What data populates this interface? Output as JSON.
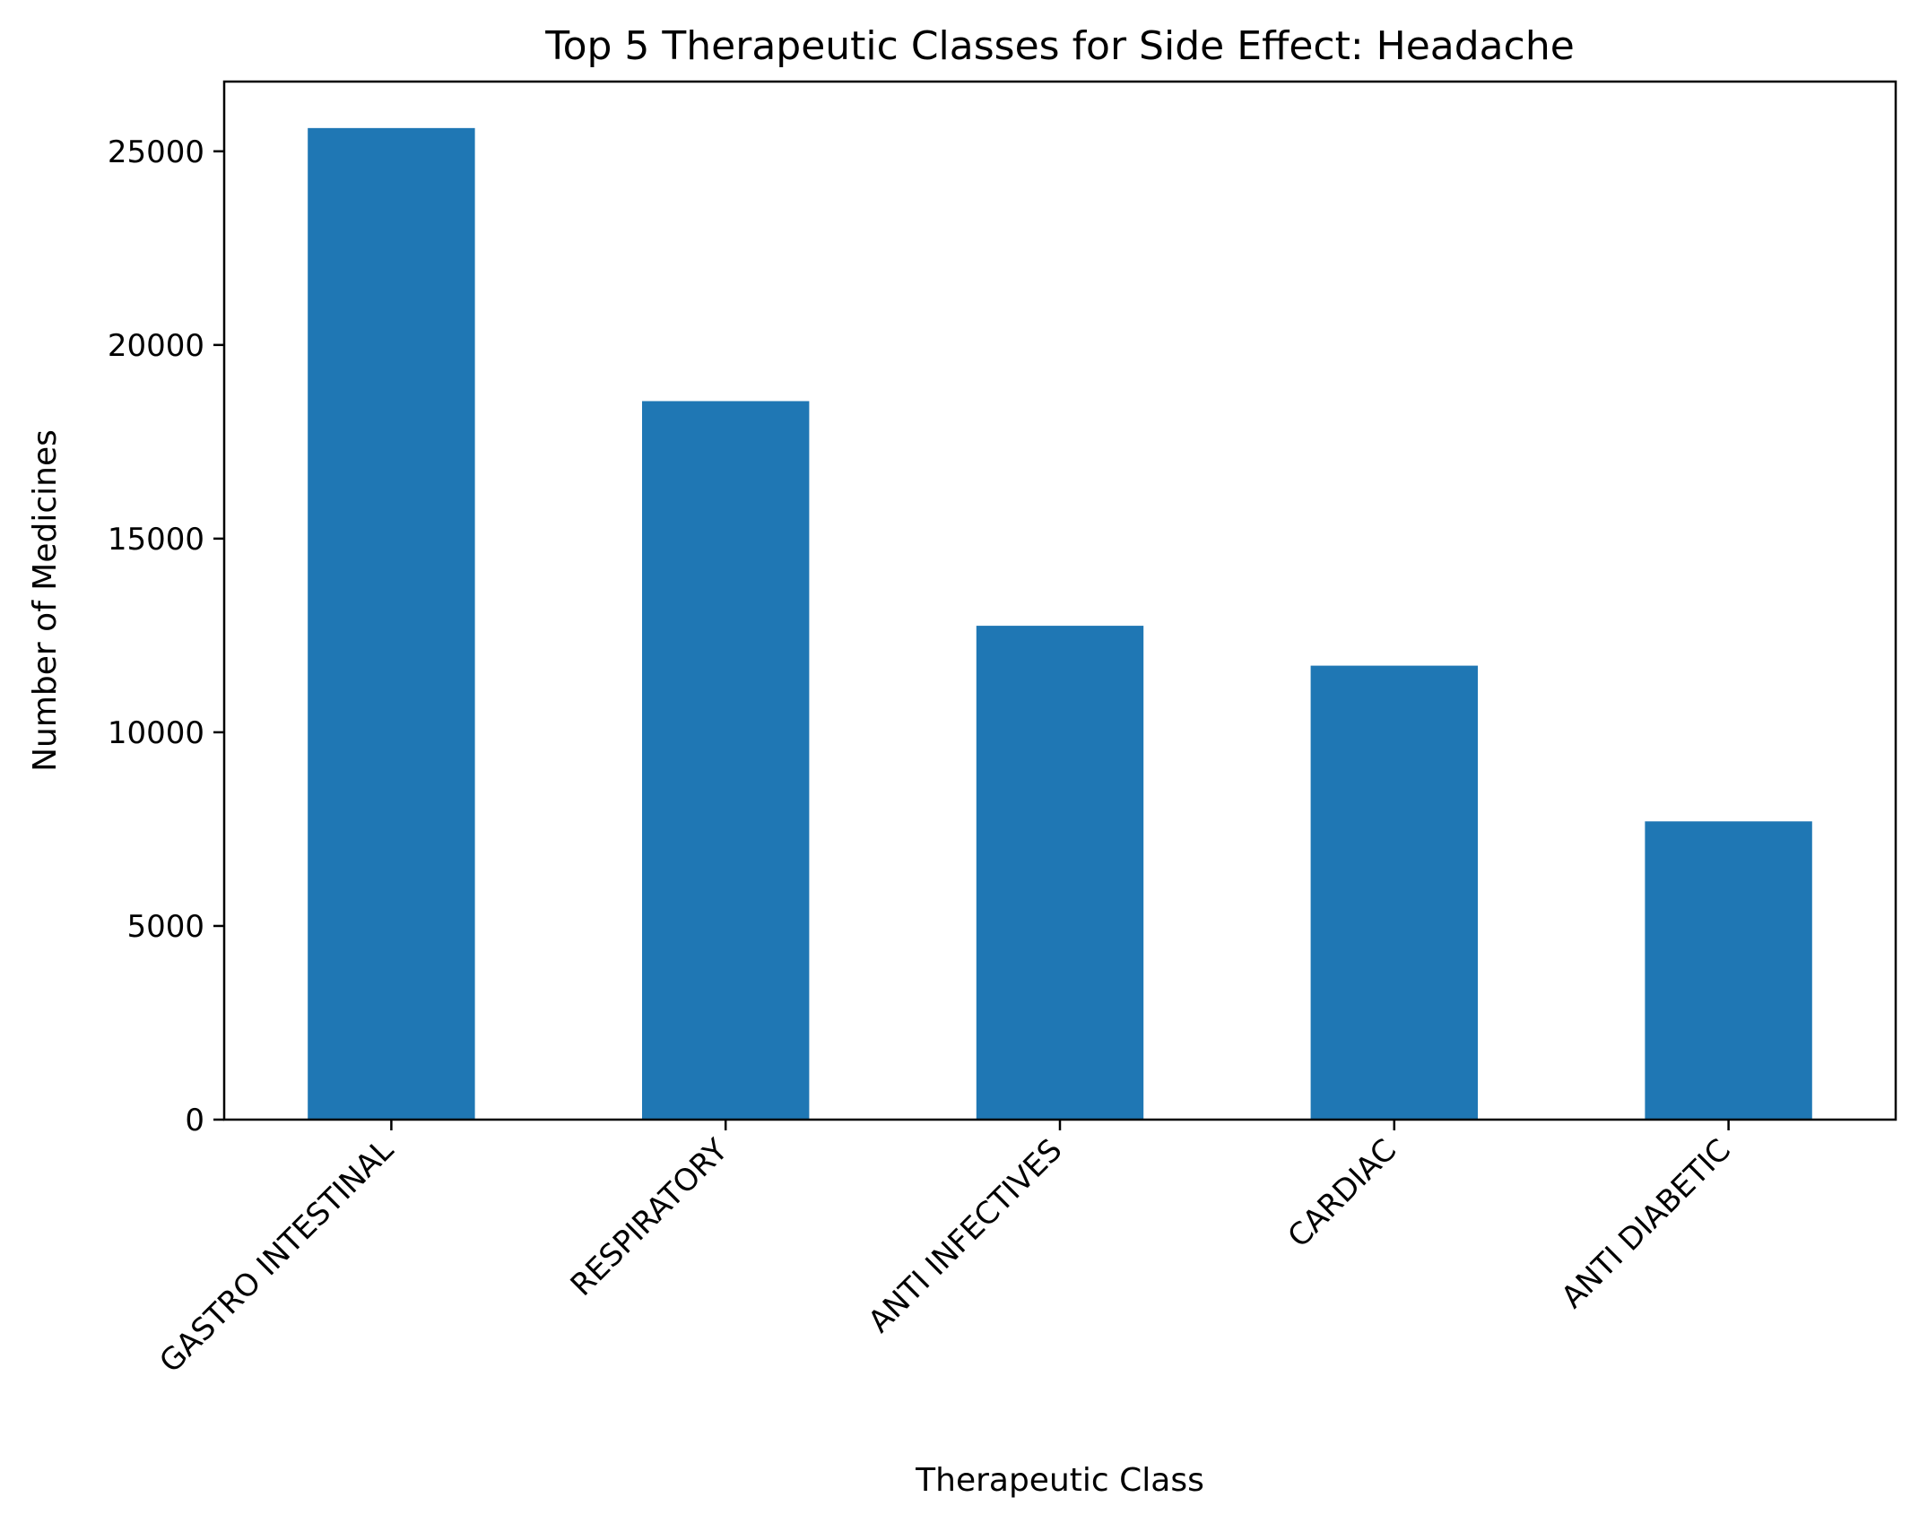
{
  "chart_data": {
    "type": "bar",
    "title": "Top 5 Therapeutic Classes for Side Effect: Headache",
    "xlabel": "Therapeutic Class",
    "ylabel": "Number of Medicines",
    "categories": [
      "GASTRO INTESTINAL",
      "RESPIRATORY",
      "ANTI INFECTIVES",
      "CARDIAC",
      "ANTI DIABETIC"
    ],
    "values": [
      25600,
      18550,
      12750,
      11720,
      7700
    ],
    "ylim": [
      0,
      26800
    ],
    "yticks": [
      0,
      5000,
      10000,
      15000,
      20000,
      25000
    ],
    "bar_color": "#1f77b4",
    "grid": false,
    "legend": "none"
  }
}
